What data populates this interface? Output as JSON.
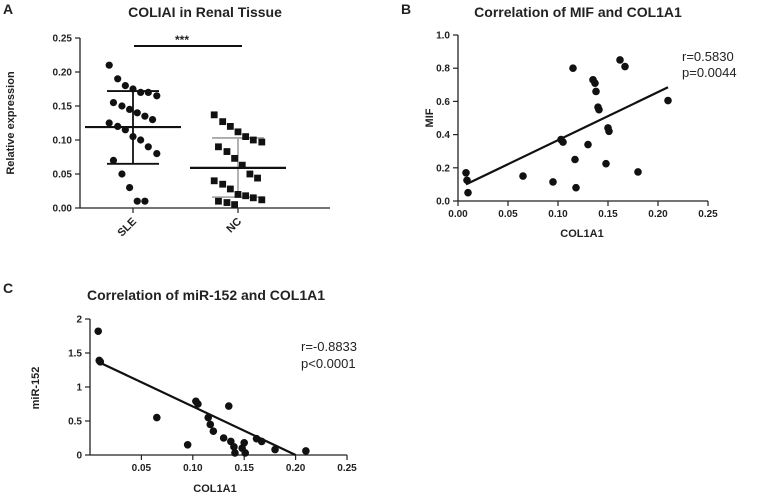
{
  "colors": {
    "ink": "#222222",
    "marker": "#111111",
    "nc_errorbar": "#aaaaaa"
  },
  "chart_data": [
    {
      "panel": "A",
      "type": "scatter",
      "subtype": "dot-plot with mean ± SD",
      "title": "COLIAI in Renal Tissue",
      "ylabel": "Relative expression",
      "xlabel": "",
      "ylim": [
        0,
        0.25
      ],
      "yticks": [
        "0.00",
        "0.05",
        "0.10",
        "0.15",
        "0.20",
        "0.25"
      ],
      "categories": [
        "SLE",
        "NC"
      ],
      "series": [
        {
          "name": "SLE",
          "marker": "circle",
          "values": [
            0.21,
            0.19,
            0.18,
            0.175,
            0.17,
            0.17,
            0.165,
            0.155,
            0.15,
            0.145,
            0.14,
            0.135,
            0.13,
            0.125,
            0.12,
            0.115,
            0.105,
            0.1,
            0.09,
            0.08,
            0.07,
            0.05,
            0.03,
            0.01,
            0.01
          ],
          "mean": 0.119,
          "sd_upper": 0.172,
          "sd_lower": 0.065
        },
        {
          "name": "NC",
          "marker": "square",
          "values": [
            0.137,
            0.127,
            0.12,
            0.112,
            0.105,
            0.1,
            0.097,
            0.09,
            0.083,
            0.073,
            0.063,
            0.05,
            0.044,
            0.04,
            0.035,
            0.028,
            0.02,
            0.018,
            0.015,
            0.012,
            0.01,
            0.008,
            0.005
          ],
          "mean": 0.059,
          "sd_upper": 0.103,
          "sd_lower": 0.016
        }
      ],
      "annotation": "***"
    },
    {
      "panel": "B",
      "type": "scatter",
      "title": "Correlation of MIF and COL1A1",
      "xlabel": "COL1A1",
      "ylabel": "MIF",
      "xlim": [
        0,
        0.25
      ],
      "ylim": [
        0,
        1.0
      ],
      "xticks": [
        "0.00",
        "0.05",
        "0.10",
        "0.15",
        "0.20",
        "0.25"
      ],
      "yticks": [
        "0.0",
        "0.2",
        "0.4",
        "0.6",
        "0.8",
        "1.0"
      ],
      "points": [
        [
          0.008,
          0.17
        ],
        [
          0.009,
          0.125
        ],
        [
          0.01,
          0.05
        ],
        [
          0.065,
          0.15
        ],
        [
          0.095,
          0.115
        ],
        [
          0.103,
          0.37
        ],
        [
          0.105,
          0.355
        ],
        [
          0.115,
          0.8
        ],
        [
          0.117,
          0.25
        ],
        [
          0.118,
          0.08
        ],
        [
          0.13,
          0.34
        ],
        [
          0.135,
          0.73
        ],
        [
          0.137,
          0.71
        ],
        [
          0.138,
          0.66
        ],
        [
          0.14,
          0.565
        ],
        [
          0.141,
          0.55
        ],
        [
          0.148,
          0.225
        ],
        [
          0.15,
          0.44
        ],
        [
          0.151,
          0.42
        ],
        [
          0.162,
          0.85
        ],
        [
          0.167,
          0.81
        ],
        [
          0.18,
          0.175
        ],
        [
          0.21,
          0.605
        ]
      ],
      "fit_line": [
        [
          0.008,
          0.1
        ],
        [
          0.21,
          0.685
        ]
      ],
      "stats": [
        "r=0.5830",
        "p=0.0044"
      ]
    },
    {
      "panel": "C",
      "type": "scatter",
      "title": "Correlation of miR-152 and COL1A1",
      "xlabel": "COL1A1",
      "ylabel": "miR-152",
      "xlim": [
        0,
        0.25
      ],
      "ylim": [
        0,
        2
      ],
      "xticks": [
        "0.05",
        "0.10",
        "0.15",
        "0.20",
        "0.25"
      ],
      "yticks": [
        "0",
        "0.5",
        "1",
        "1.5",
        "2"
      ],
      "points": [
        [
          0.008,
          1.82
        ],
        [
          0.009,
          1.39
        ],
        [
          0.01,
          1.37
        ],
        [
          0.065,
          0.55
        ],
        [
          0.095,
          0.15
        ],
        [
          0.103,
          0.79
        ],
        [
          0.105,
          0.75
        ],
        [
          0.115,
          0.55
        ],
        [
          0.117,
          0.45
        ],
        [
          0.12,
          0.35
        ],
        [
          0.13,
          0.25
        ],
        [
          0.135,
          0.72
        ],
        [
          0.137,
          0.2
        ],
        [
          0.14,
          0.12
        ],
        [
          0.141,
          0.03
        ],
        [
          0.148,
          0.1
        ],
        [
          0.15,
          0.18
        ],
        [
          0.151,
          0.03
        ],
        [
          0.162,
          0.24
        ],
        [
          0.167,
          0.2
        ],
        [
          0.18,
          0.08
        ],
        [
          0.21,
          0.06
        ]
      ],
      "fit_line": [
        [
          0.008,
          1.37
        ],
        [
          0.2,
          0.0
        ]
      ],
      "stats": [
        "r=-0.8833",
        "p<0.0001"
      ]
    }
  ]
}
